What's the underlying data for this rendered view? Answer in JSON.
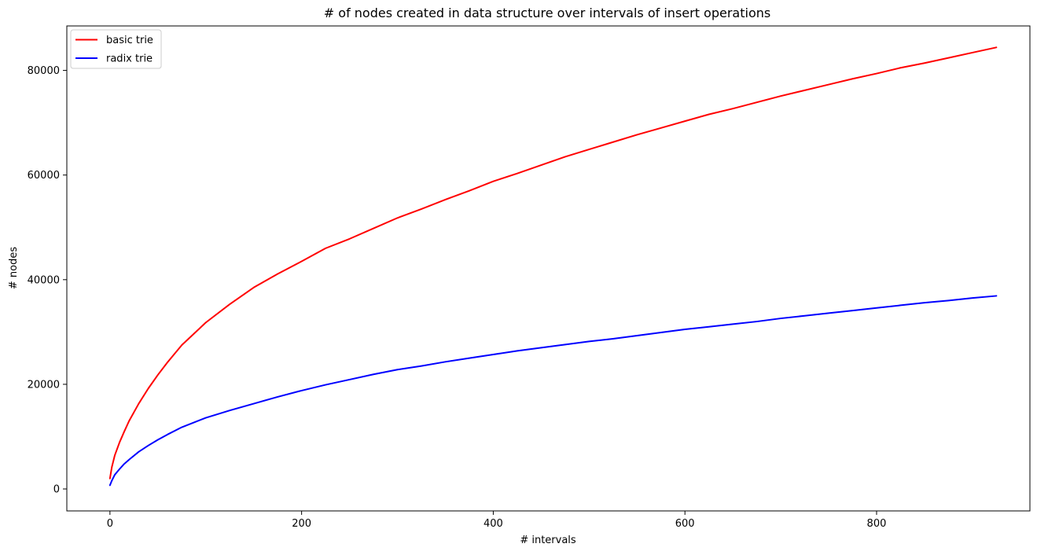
{
  "chart_data": {
    "type": "line",
    "title": "# of nodes created in data structure over intervals of insert operations",
    "xlabel": "# intervals",
    "ylabel": "# nodes",
    "xlim": [
      -45,
      960
    ],
    "ylim": [
      -4200,
      88500
    ],
    "xticks": [
      0,
      200,
      400,
      600,
      800
    ],
    "yticks": [
      0,
      20000,
      40000,
      60000,
      80000
    ],
    "legend_position": "top-left",
    "grid": false,
    "series": [
      {
        "name": "basic trie",
        "color": "#ff0000",
        "points": [
          [
            0,
            2000
          ],
          [
            2,
            4200
          ],
          [
            5,
            6400
          ],
          [
            10,
            8900
          ],
          [
            15,
            11000
          ],
          [
            20,
            13000
          ],
          [
            30,
            16300
          ],
          [
            40,
            19200
          ],
          [
            50,
            21800
          ],
          [
            60,
            24200
          ],
          [
            75,
            27500
          ],
          [
            100,
            31800
          ],
          [
            125,
            35300
          ],
          [
            150,
            38500
          ],
          [
            175,
            41100
          ],
          [
            200,
            43500
          ],
          [
            225,
            46000
          ],
          [
            250,
            47800
          ],
          [
            275,
            49800
          ],
          [
            300,
            51800
          ],
          [
            325,
            53500
          ],
          [
            350,
            55300
          ],
          [
            375,
            57000
          ],
          [
            400,
            58800
          ],
          [
            425,
            60300
          ],
          [
            450,
            61900
          ],
          [
            475,
            63500
          ],
          [
            500,
            64900
          ],
          [
            525,
            66300
          ],
          [
            550,
            67700
          ],
          [
            575,
            69000
          ],
          [
            600,
            70300
          ],
          [
            625,
            71600
          ],
          [
            650,
            72700
          ],
          [
            675,
            73900
          ],
          [
            700,
            75100
          ],
          [
            725,
            76200
          ],
          [
            750,
            77300
          ],
          [
            775,
            78400
          ],
          [
            800,
            79400
          ],
          [
            825,
            80500
          ],
          [
            850,
            81400
          ],
          [
            875,
            82400
          ],
          [
            900,
            83400
          ],
          [
            925,
            84400
          ]
        ]
      },
      {
        "name": "radix trie",
        "color": "#0000ff",
        "points": [
          [
            0,
            700
          ],
          [
            2,
            1600
          ],
          [
            5,
            2700
          ],
          [
            10,
            3800
          ],
          [
            15,
            4800
          ],
          [
            20,
            5600
          ],
          [
            30,
            7100
          ],
          [
            40,
            8300
          ],
          [
            50,
            9400
          ],
          [
            60,
            10400
          ],
          [
            75,
            11800
          ],
          [
            100,
            13600
          ],
          [
            125,
            15000
          ],
          [
            150,
            16300
          ],
          [
            175,
            17600
          ],
          [
            200,
            18800
          ],
          [
            225,
            19900
          ],
          [
            250,
            20900
          ],
          [
            275,
            21900
          ],
          [
            300,
            22800
          ],
          [
            325,
            23500
          ],
          [
            350,
            24300
          ],
          [
            375,
            25000
          ],
          [
            400,
            25700
          ],
          [
            425,
            26400
          ],
          [
            450,
            27000
          ],
          [
            475,
            27600
          ],
          [
            500,
            28200
          ],
          [
            525,
            28700
          ],
          [
            550,
            29300
          ],
          [
            575,
            29900
          ],
          [
            600,
            30500
          ],
          [
            625,
            31000
          ],
          [
            650,
            31500
          ],
          [
            675,
            32000
          ],
          [
            700,
            32600
          ],
          [
            725,
            33100
          ],
          [
            750,
            33600
          ],
          [
            775,
            34100
          ],
          [
            800,
            34600
          ],
          [
            825,
            35100
          ],
          [
            850,
            35600
          ],
          [
            875,
            36000
          ],
          [
            900,
            36500
          ],
          [
            925,
            36900
          ]
        ]
      }
    ]
  }
}
